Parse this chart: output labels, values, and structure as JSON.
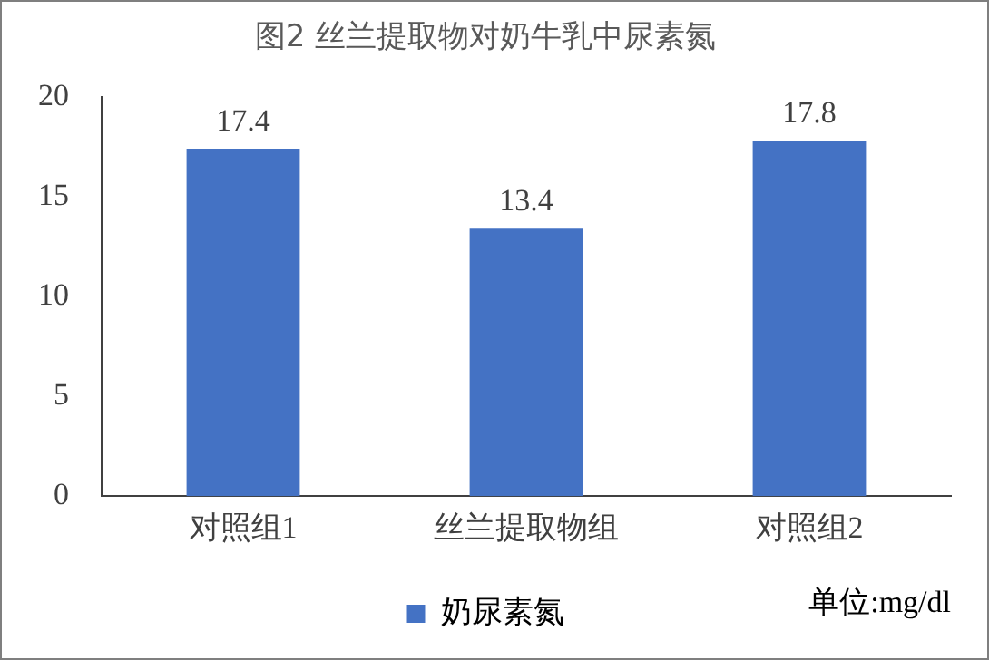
{
  "chart_data": {
    "type": "bar",
    "title": "图2 丝兰提取物对奶牛乳中尿素氮",
    "categories": [
      "对照组1",
      "丝兰提取物组",
      "对照组2"
    ],
    "series": [
      {
        "name": "奶尿素氮",
        "color": "#4472c4",
        "values": [
          17.4,
          13.4,
          17.8
        ]
      }
    ],
    "ylim": [
      0,
      20
    ],
    "yticks": [
      0,
      5,
      10,
      15,
      20
    ],
    "grid": false,
    "legend": "bottom",
    "data_labels": true,
    "annotations": [
      "单位:mg/dl"
    ]
  }
}
